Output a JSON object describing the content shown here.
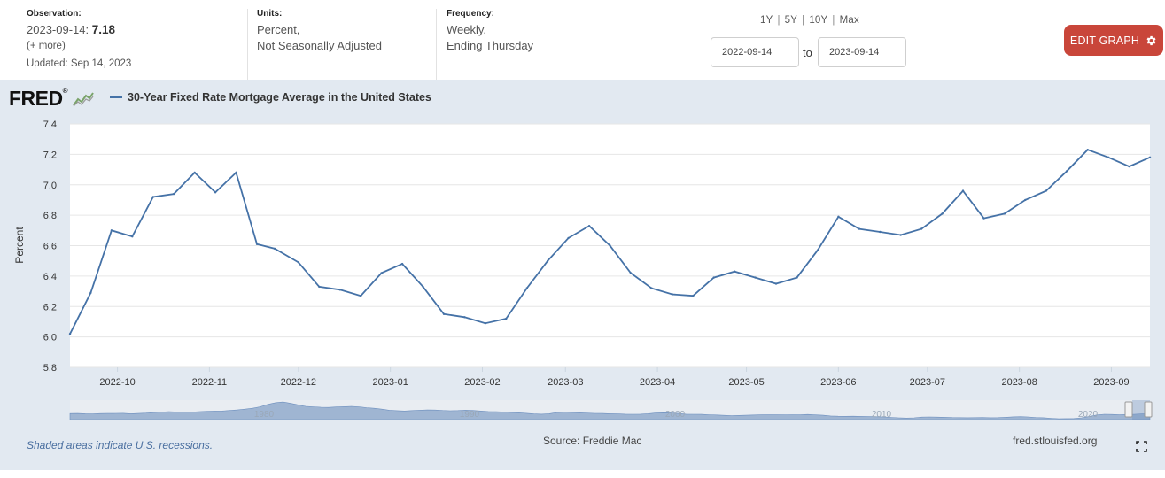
{
  "meta": {
    "observation_label": "Observation:",
    "observation_date": "2023-09-14:",
    "observation_value": "7.18",
    "more_link": "(+ more)",
    "updated": "Updated: Sep 14, 2023",
    "units_label": "Units:",
    "units_line1": "Percent,",
    "units_line2": "Not Seasonally Adjusted",
    "frequency_label": "Frequency:",
    "frequency_line1": "Weekly,",
    "frequency_line2": "Ending Thursday"
  },
  "range_links": [
    "1Y",
    "5Y",
    "10Y",
    "Max"
  ],
  "date_range": {
    "start": "2022-09-14",
    "to": "to",
    "end": "2023-09-14"
  },
  "edit_button": {
    "label": "EDIT GRAPH",
    "icon": "gear-icon"
  },
  "brand": {
    "logo_text": "FRED",
    "logo_mark": "®"
  },
  "footer": {
    "recession_note": "Shaded areas indicate U.S. recessions.",
    "source": "Source: Freddie Mac",
    "site": "fred.stlouisfed.org"
  },
  "colors": {
    "line": "#4572a7",
    "panel_bg": "#e2e9f1",
    "edit_button": "#c9463a",
    "navigator_fill": "#7f9cc4"
  },
  "chart_data": {
    "type": "line",
    "title": "",
    "xlabel": "",
    "ylabel": "Percent",
    "ylim": [
      5.8,
      7.4
    ],
    "yticks": [
      "5.8",
      "6.0",
      "6.2",
      "6.4",
      "6.6",
      "6.8",
      "7.0",
      "7.2",
      "7.4"
    ],
    "xlim": [
      "2022-09-15",
      "2023-09-14"
    ],
    "xticks": [
      {
        "date": "2022-10-01",
        "label": "2022-10"
      },
      {
        "date": "2022-11-01",
        "label": "2022-11"
      },
      {
        "date": "2022-12-01",
        "label": "2022-12"
      },
      {
        "date": "2023-01-01",
        "label": "2023-01"
      },
      {
        "date": "2023-02-01",
        "label": "2023-02"
      },
      {
        "date": "2023-03-01",
        "label": "2023-03"
      },
      {
        "date": "2023-04-01",
        "label": "2023-04"
      },
      {
        "date": "2023-05-01",
        "label": "2023-05"
      },
      {
        "date": "2023-06-01",
        "label": "2023-06"
      },
      {
        "date": "2023-07-01",
        "label": "2023-07"
      },
      {
        "date": "2023-08-01",
        "label": "2023-08"
      },
      {
        "date": "2023-09-01",
        "label": "2023-09"
      }
    ],
    "grid": true,
    "legend": "top-left",
    "series": [
      {
        "name": "30-Year Fixed Rate Mortgage Average in the United States",
        "x": [
          "2022-09-15",
          "2022-09-22",
          "2022-09-29",
          "2022-10-06",
          "2022-10-13",
          "2022-10-20",
          "2022-10-27",
          "2022-11-03",
          "2022-11-10",
          "2022-11-17",
          "2022-11-23",
          "2022-12-01",
          "2022-12-08",
          "2022-12-15",
          "2022-12-22",
          "2022-12-29",
          "2023-01-05",
          "2023-01-12",
          "2023-01-19",
          "2023-01-26",
          "2023-02-02",
          "2023-02-09",
          "2023-02-16",
          "2023-02-23",
          "2023-03-02",
          "2023-03-09",
          "2023-03-16",
          "2023-03-23",
          "2023-03-30",
          "2023-04-06",
          "2023-04-13",
          "2023-04-20",
          "2023-04-27",
          "2023-05-04",
          "2023-05-11",
          "2023-05-18",
          "2023-05-25",
          "2023-06-01",
          "2023-06-08",
          "2023-06-15",
          "2023-06-22",
          "2023-06-29",
          "2023-07-06",
          "2023-07-13",
          "2023-07-20",
          "2023-07-27",
          "2023-08-03",
          "2023-08-10",
          "2023-08-17",
          "2023-08-24",
          "2023-08-31",
          "2023-09-07",
          "2023-09-14"
        ],
        "values": [
          6.02,
          6.29,
          6.7,
          6.66,
          6.92,
          6.94,
          7.08,
          6.95,
          7.08,
          6.61,
          6.58,
          6.49,
          6.33,
          6.31,
          6.27,
          6.42,
          6.48,
          6.33,
          6.15,
          6.13,
          6.09,
          6.12,
          6.32,
          6.5,
          6.65,
          6.73,
          6.6,
          6.42,
          6.32,
          6.28,
          6.27,
          6.39,
          6.43,
          6.39,
          6.35,
          6.39,
          6.57,
          6.79,
          6.71,
          6.69,
          6.67,
          6.71,
          6.81,
          6.96,
          6.78,
          6.81,
          6.9,
          6.96,
          7.09,
          7.23,
          7.18,
          7.12,
          7.18
        ]
      }
    ],
    "navigator": {
      "labels": [
        "1980",
        "1990",
        "2000",
        "2010",
        "2020"
      ],
      "values": [
        7.5,
        7.6,
        7.4,
        7.3,
        7.5,
        7.6,
        7.7,
        7.8,
        7.4,
        7.6,
        7.9,
        8.4,
        8.9,
        9.3,
        9.0,
        8.8,
        8.9,
        9.3,
        9.6,
        9.8,
        9.9,
        10.4,
        10.9,
        11.6,
        12.4,
        13.8,
        16.0,
        17.5,
        18.2,
        17.0,
        15.6,
        14.2,
        13.8,
        13.4,
        13.2,
        13.6,
        13.9,
        14.2,
        13.8,
        13.0,
        12.4,
        11.6,
        10.6,
        10.2,
        9.9,
        10.3,
        10.6,
        10.9,
        10.8,
        10.4,
        10.1,
        10.3,
        10.6,
        10.4,
        9.9,
        9.4,
        9.2,
        9.0,
        8.6,
        8.3,
        7.8,
        7.2,
        7.0,
        7.4,
        8.4,
        8.8,
        8.5,
        8.3,
        7.9,
        7.7,
        7.6,
        7.4,
        7.2,
        7.0,
        6.9,
        7.0,
        7.4,
        8.0,
        8.3,
        8.2,
        7.6,
        7.0,
        6.9,
        6.8,
        6.5,
        6.2,
        5.9,
        5.7,
        5.8,
        6.0,
        6.2,
        6.4,
        6.5,
        6.4,
        6.3,
        6.4,
        6.5,
        6.7,
        6.3,
        6.0,
        5.3,
        5.1,
        5.0,
        5.1,
        4.9,
        4.8,
        4.6,
        4.4,
        4.0,
        3.6,
        3.4,
        3.6,
        4.3,
        4.4,
        4.3,
        4.1,
        3.9,
        3.8,
        3.7,
        3.8,
        3.9,
        3.7,
        3.8,
        4.1,
        4.5,
        4.7,
        4.4,
        3.9,
        3.7,
        3.2,
        2.8,
        2.9,
        3.0,
        3.6,
        4.8,
        6.2,
        6.9,
        6.7,
        6.4,
        6.6,
        6.9,
        7.2,
        7.18
      ]
    }
  }
}
